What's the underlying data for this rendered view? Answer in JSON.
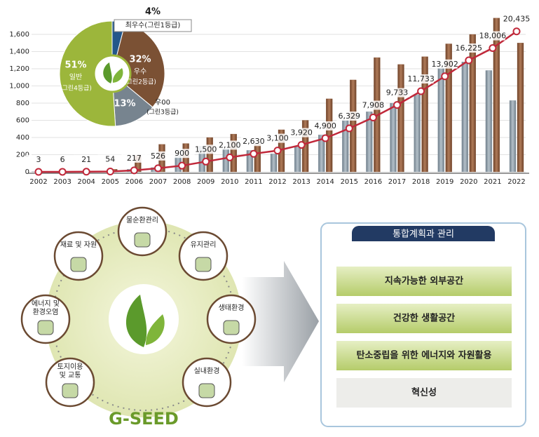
{
  "chart_data": [
    {
      "type": "bar",
      "categories": [
        "2002",
        "2003",
        "2004",
        "2005",
        "2006",
        "2007",
        "2008",
        "2009",
        "2010",
        "2011",
        "2012",
        "2013",
        "2014",
        "2015",
        "2016",
        "2017",
        "2018",
        "2019",
        "2020",
        "2021",
        "2022"
      ],
      "ylim": [
        0,
        1600
      ],
      "yticks": [
        0,
        200,
        400,
        600,
        800,
        {
          "value": 1000,
          "label": "1,000"
        },
        {
          "value": 1200,
          "label": "1,200"
        },
        {
          "value": 1400,
          "label": "1,400"
        },
        {
          "value": 1600,
          "label": "1,600"
        }
      ],
      "y2lim": [
        0,
        20000
      ],
      "series": [
        {
          "type": "bar",
          "color": "#8c9aa6",
          "values": [
            2,
            2,
            3,
            5,
            30,
            50,
            190,
            300,
            270,
            250,
            210,
            300,
            430,
            600,
            700,
            800,
            900,
            1210,
            1280,
            1180,
            830
          ]
        },
        {
          "type": "bar",
          "color": "#8b5a3c",
          "values": [
            3,
            4,
            8,
            30,
            190,
            320,
            330,
            400,
            440,
            320,
            490,
            600,
            850,
            1070,
            1330,
            1250,
            1340,
            1490,
            1600,
            1790,
            1500
          ]
        },
        {
          "type": "line",
          "axis": "y2",
          "color": "#c0283a",
          "values": [
            3,
            6,
            21,
            54,
            217,
            526,
            900,
            1500,
            2100,
            2630,
            3100,
            3920,
            4900,
            6329,
            7908,
            9733,
            11733,
            13902,
            16225,
            18006,
            20435
          ],
          "value_labels": [
            "3",
            "6",
            "21",
            "54",
            "217",
            "526",
            "900",
            "1,500",
            "2,100",
            "2,630",
            "3,100",
            "3,920",
            "4,900",
            "6,329",
            "7,908",
            "9,733",
            "11,733",
            "13,902",
            "16,225",
            "18,006",
            "20,435"
          ]
        }
      ]
    },
    {
      "type": "pie",
      "categories": [
        "최우수(그린1등급)",
        "우수",
        "우00",
        "일반"
      ],
      "grades": [
        null,
        "(그린2등급)",
        "(그린3등급)",
        "(그린4등급)"
      ],
      "values": [
        4,
        32,
        13,
        51
      ],
      "value_labels": [
        "4%",
        "32%",
        "13%",
        "51%"
      ],
      "colors": [
        "#23578a",
        "#7b5134",
        "#77848f",
        "#9cb63b"
      ]
    }
  ],
  "diagram": {
    "center": "G-SEED",
    "nodes": [
      {
        "lines": [
          "물순환관리"
        ]
      },
      {
        "lines": [
          "유지관리"
        ]
      },
      {
        "lines": [
          "생태환경"
        ]
      },
      {
        "lines": [
          "실내환경"
        ]
      },
      {
        "lines": [
          "토지이용",
          "및 교통"
        ]
      },
      {
        "lines": [
          "에너지 및",
          "환경오염"
        ]
      },
      {
        "lines": [
          "재료 및 자원"
        ]
      }
    ],
    "panel": {
      "title": "통합계획과 관리",
      "items": [
        "지속가능한 외부공간",
        "건강한 생활공간",
        "탄소중립을 위한 에너지와 자원활용",
        "혁신성"
      ]
    }
  }
}
